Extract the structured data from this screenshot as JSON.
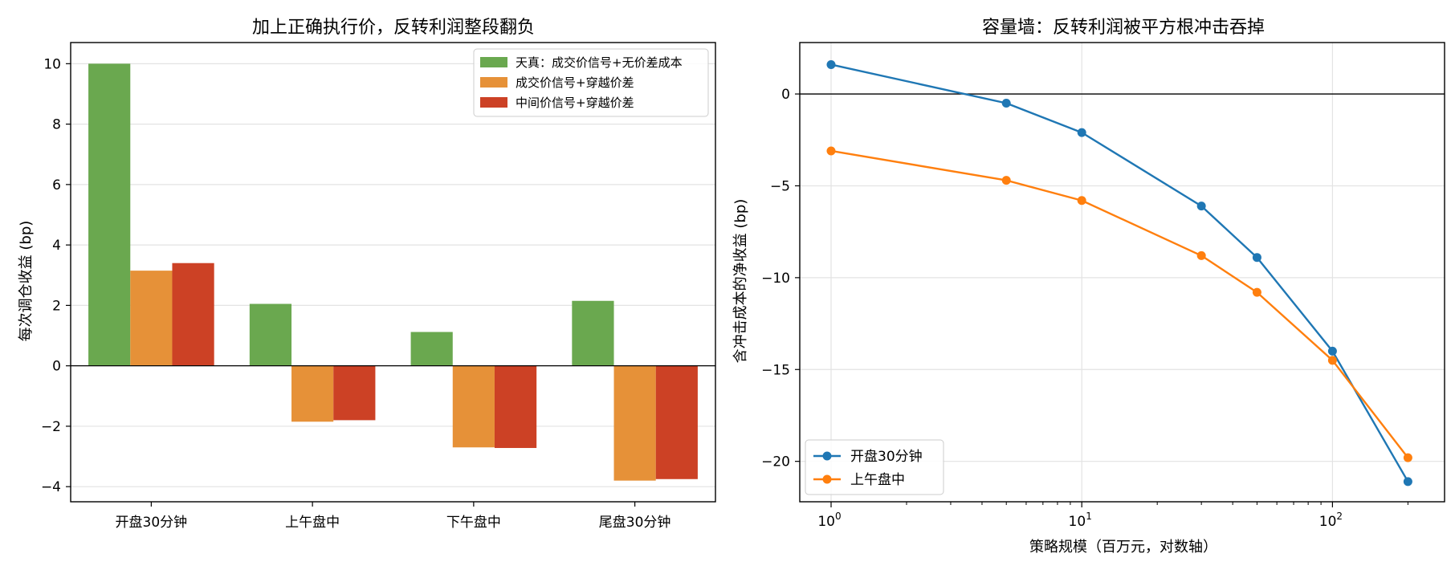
{
  "chart_data": [
    {
      "type": "bar",
      "title": "加上正确执行价，反转利润整段翻负",
      "xlabel": "",
      "ylabel": "每次调仓收益 (bp)",
      "categories": [
        "开盘30分钟",
        "上午盘中",
        "下午盘中",
        "尾盘30分钟"
      ],
      "series": [
        {
          "name": "天真：成交价信号+无价差成本",
          "color": "#6aa84f",
          "values": [
            10.0,
            2.05,
            1.12,
            2.15
          ]
        },
        {
          "name": "成交价信号+穿越价差",
          "color": "#e69138",
          "values": [
            3.15,
            -1.85,
            -2.7,
            -3.8
          ]
        },
        {
          "name": "中间价信号+穿越价差",
          "color": "#cc4125",
          "values": [
            3.4,
            -1.8,
            -2.72,
            -3.75
          ]
        }
      ],
      "ylim": [
        -4.5,
        10.7
      ],
      "yticks": [
        -4,
        -2,
        0,
        2,
        4,
        6,
        8,
        10
      ],
      "ytick_labels": [
        "−4",
        "−2",
        "0",
        "2",
        "4",
        "6",
        "8",
        "10"
      ],
      "grid": "y",
      "legend_position": "top-right"
    },
    {
      "type": "line",
      "title": "容量墙：反转利润被平方根冲击吞掉",
      "xlabel": "策略规模（百万元，对数轴）",
      "ylabel": "含冲击成本的净收益 (bp)",
      "x_scale": "log",
      "x": [
        1,
        5,
        10,
        30,
        50,
        100,
        200
      ],
      "series": [
        {
          "name": "开盘30分钟",
          "color": "#1f77b4",
          "values": [
            1.6,
            -0.5,
            -2.1,
            -6.1,
            -8.9,
            -14.0,
            -21.1
          ]
        },
        {
          "name": "上午盘中",
          "color": "#ff7f0e",
          "values": [
            -3.1,
            -4.7,
            -5.8,
            -8.8,
            -10.8,
            -14.5,
            -19.8
          ]
        }
      ],
      "xlim": [
        0.75,
        280
      ],
      "ylim": [
        -22.2,
        2.8
      ],
      "yticks": [
        -20,
        -15,
        -10,
        -5,
        0
      ],
      "ytick_labels": [
        "−20",
        "−15",
        "−10",
        "−5",
        "0"
      ],
      "xtick_bases": [
        "10",
        "10",
        "10"
      ],
      "xtick_exponents": [
        "0",
        "1",
        "2"
      ],
      "grid": "both",
      "legend_position": "bottom-left"
    }
  ]
}
